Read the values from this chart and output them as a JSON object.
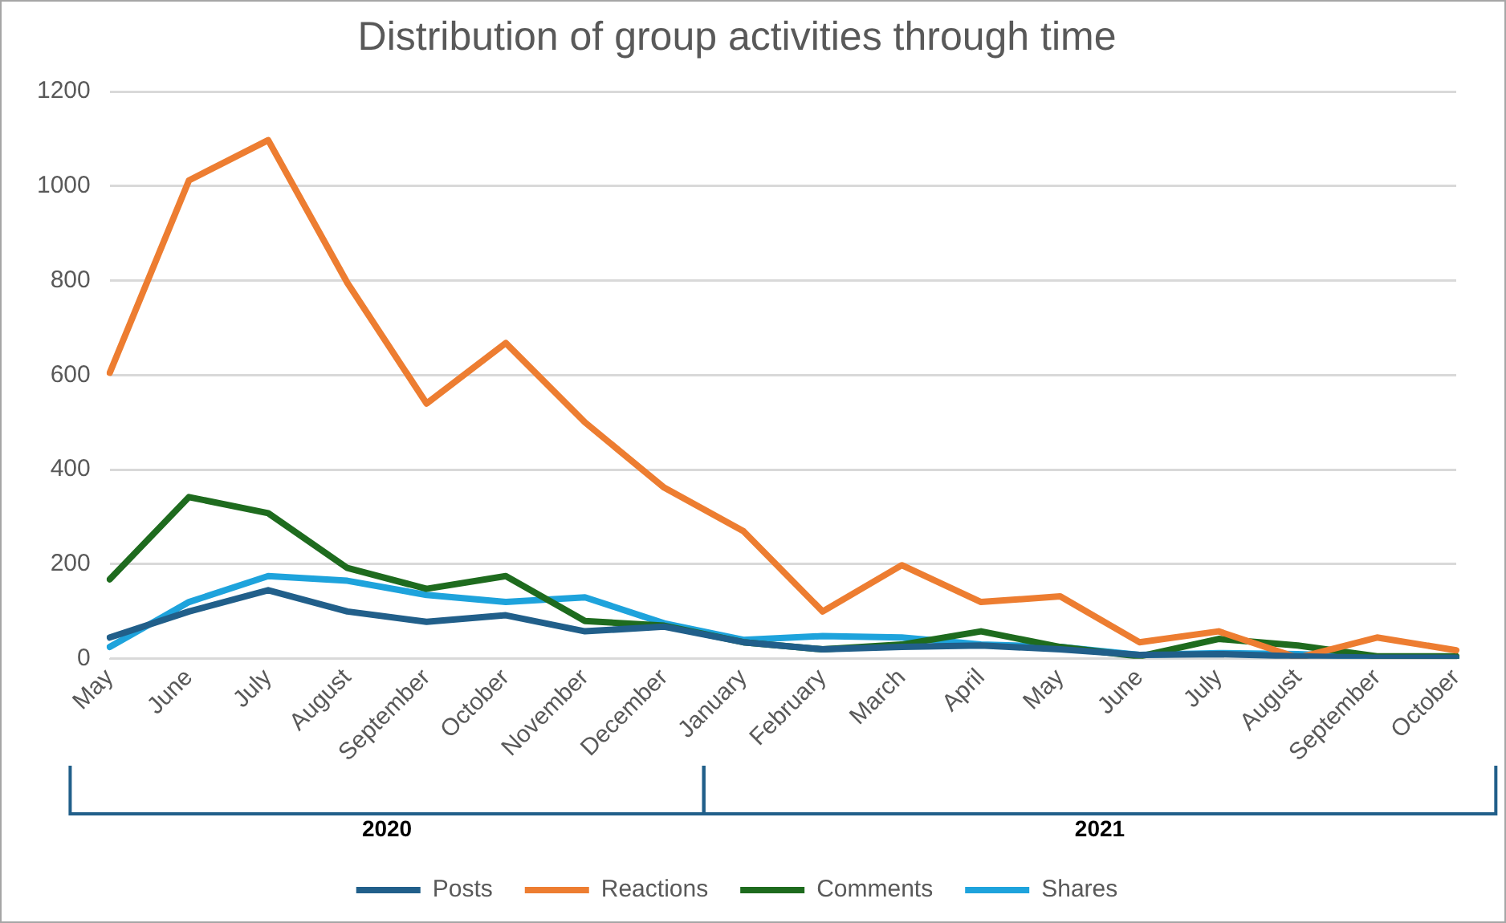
{
  "chart_data": {
    "type": "line",
    "title": "Distribution of group activities through time",
    "categories": [
      "May",
      "June",
      "July",
      "August",
      "September",
      "October",
      "November",
      "December",
      "January",
      "February",
      "March",
      "April",
      "May",
      "June",
      "July",
      "August",
      "September",
      "October"
    ],
    "annotations": [
      "2020",
      "2021"
    ],
    "series": [
      {
        "name": "Posts",
        "color": "#215f8a",
        "values": [
          45,
          100,
          145,
          100,
          78,
          92,
          58,
          68,
          35,
          20,
          25,
          28,
          20,
          8,
          10,
          5,
          2,
          2
        ]
      },
      {
        "name": "Reactions",
        "color": "#ed7d31",
        "values": [
          605,
          1012,
          1097,
          795,
          540,
          668,
          500,
          362,
          270,
          100,
          198,
          120,
          132,
          35,
          58,
          2,
          45,
          18
        ]
      },
      {
        "name": "Comments",
        "color": "#1e6b1e",
        "values": [
          168,
          342,
          308,
          192,
          148,
          175,
          80,
          70,
          35,
          20,
          30,
          58,
          25,
          5,
          42,
          28,
          5,
          5
        ]
      },
      {
        "name": "Shares",
        "color": "#1ea3dc",
        "values": [
          25,
          120,
          175,
          165,
          135,
          120,
          130,
          75,
          40,
          48,
          45,
          30,
          25,
          8,
          12,
          10,
          3,
          3
        ]
      }
    ],
    "ylim": [
      0,
      1200
    ],
    "yticks": [
      0,
      200,
      400,
      600,
      800,
      1000,
      1200
    ],
    "grid": "y",
    "legend": "bottom",
    "marker": "none",
    "line_style": "solid"
  }
}
